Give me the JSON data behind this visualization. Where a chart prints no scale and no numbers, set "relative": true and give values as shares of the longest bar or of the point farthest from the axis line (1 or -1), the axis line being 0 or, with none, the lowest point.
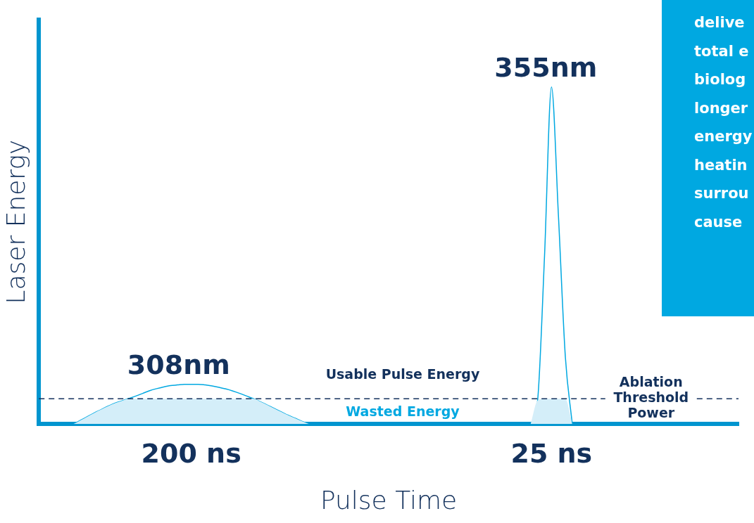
{
  "chart_data": {
    "type": "line",
    "relative": true,
    "xlabel": "Pulse Time",
    "ylabel": "Laser Energy",
    "categories": [
      null,
      null,
      null,
      null,
      null,
      null,
      null,
      null,
      null,
      null,
      null,
      null,
      null,
      null,
      null,
      null,
      null,
      null,
      null,
      null,
      null,
      null,
      "200 ns",
      null,
      null,
      null,
      null,
      null,
      null,
      null,
      null,
      null,
      null,
      null,
      null,
      null,
      null,
      null,
      null,
      null,
      null,
      null,
      null,
      null,
      null,
      null,
      null,
      null,
      null,
      null,
      null,
      null,
      null,
      null,
      null,
      null,
      null,
      null,
      null,
      null,
      null,
      null,
      null,
      null,
      null,
      null,
      null,
      null,
      null,
      null,
      null,
      null,
      null,
      null,
      "25 ns",
      null,
      null,
      null,
      null,
      null,
      null,
      null,
      null,
      null,
      null,
      null,
      null,
      null,
      null,
      null,
      null,
      null,
      null,
      null,
      null,
      null,
      null,
      null,
      null,
      null,
      null,
      null
    ],
    "series": [
      {
        "type": "area",
        "color": "#d4eef9",
        "values": [
          null,
          null,
          null,
          null,
          null,
          0,
          0.011,
          0.022,
          0.033,
          0.043,
          0.053,
          0.062,
          0.069,
          0.075,
          0.075,
          0.075,
          0.075,
          0.075,
          0.075,
          0.075,
          0.075,
          0.075,
          0.075,
          0.075,
          0.075,
          0.075,
          0.075,
          0.075,
          0.075,
          0.075,
          0.075,
          0.075,
          0.066,
          0.056,
          0.046,
          0.036,
          0.026,
          0.017,
          0.008,
          0,
          null,
          null,
          null,
          null,
          null,
          null,
          null,
          null,
          null,
          null,
          null,
          null,
          null,
          null,
          null,
          null,
          null,
          null,
          null,
          null,
          null,
          null,
          null,
          null,
          null,
          null,
          null,
          null,
          null,
          null,
          null,
          0,
          0.07,
          0.075,
          0.075,
          0.075,
          0.075,
          0,
          null,
          null,
          null,
          null,
          null,
          null,
          null,
          null,
          null,
          null,
          null,
          null,
          null,
          null,
          null,
          null,
          null,
          null,
          null,
          null,
          null,
          null,
          null,
          null
        ]
      },
      {
        "type": "line",
        "name": "308nm",
        "color": "#00a8e1",
        "values": [
          null,
          null,
          null,
          null,
          null,
          0,
          0.011,
          0.022,
          0.033,
          0.043,
          0.053,
          0.062,
          0.069,
          0.076,
          0.083,
          0.091,
          0.099,
          0.105,
          0.11,
          0.114,
          0.116,
          0.118,
          0.118,
          0.118,
          0.116,
          0.113,
          0.109,
          0.104,
          0.098,
          0.091,
          0.083,
          0.075,
          0.066,
          0.056,
          0.046,
          0.036,
          0.026,
          0.017,
          0.008,
          0,
          null,
          null,
          null,
          null,
          null,
          null,
          null,
          null,
          null,
          null,
          null,
          null,
          null,
          null,
          null,
          null,
          null,
          null,
          null,
          null,
          null,
          null,
          null,
          null,
          null,
          null,
          null,
          null,
          null,
          null,
          null,
          null,
          null,
          null,
          null,
          null,
          null,
          null,
          null,
          null,
          null,
          null,
          null,
          null,
          null,
          null,
          null,
          null,
          null,
          null,
          null,
          null,
          null,
          null,
          null,
          null,
          null,
          null,
          null,
          null,
          null,
          null
        ]
      },
      {
        "type": "line",
        "name": "355nm",
        "color": "#00a8e1",
        "values": [
          null,
          null,
          null,
          null,
          null,
          null,
          null,
          null,
          null,
          null,
          null,
          null,
          null,
          null,
          null,
          null,
          null,
          null,
          null,
          null,
          null,
          null,
          null,
          null,
          null,
          null,
          null,
          null,
          null,
          null,
          null,
          null,
          null,
          null,
          null,
          null,
          null,
          null,
          null,
          null,
          null,
          null,
          null,
          null,
          null,
          null,
          null,
          null,
          null,
          null,
          null,
          null,
          null,
          null,
          null,
          null,
          null,
          null,
          null,
          null,
          null,
          null,
          null,
          null,
          null,
          null,
          null,
          null,
          null,
          null,
          null,
          0,
          0.07,
          0.5,
          1,
          0.62,
          0.2,
          0,
          null,
          null,
          null,
          null,
          null,
          null,
          null,
          null,
          null,
          null,
          null,
          null,
          null,
          null,
          null,
          null,
          null,
          null,
          null,
          null,
          null,
          null,
          null,
          null
        ]
      }
    ],
    "ref_lines": [
      {
        "axis": "y",
        "value": 0.075,
        "label": "Ablation Threshold Power",
        "color": "#13315c",
        "line_style": "dashed"
      }
    ],
    "annotations": [
      "Usable Pulse Energy",
      "Wasted Energy",
      "delive\ntotal e\nbiolog\nlonger\nenergy\nheatin\nsurrou\ncause"
    ],
    "legend": false,
    "grid": false,
    "marker": "none"
  }
}
